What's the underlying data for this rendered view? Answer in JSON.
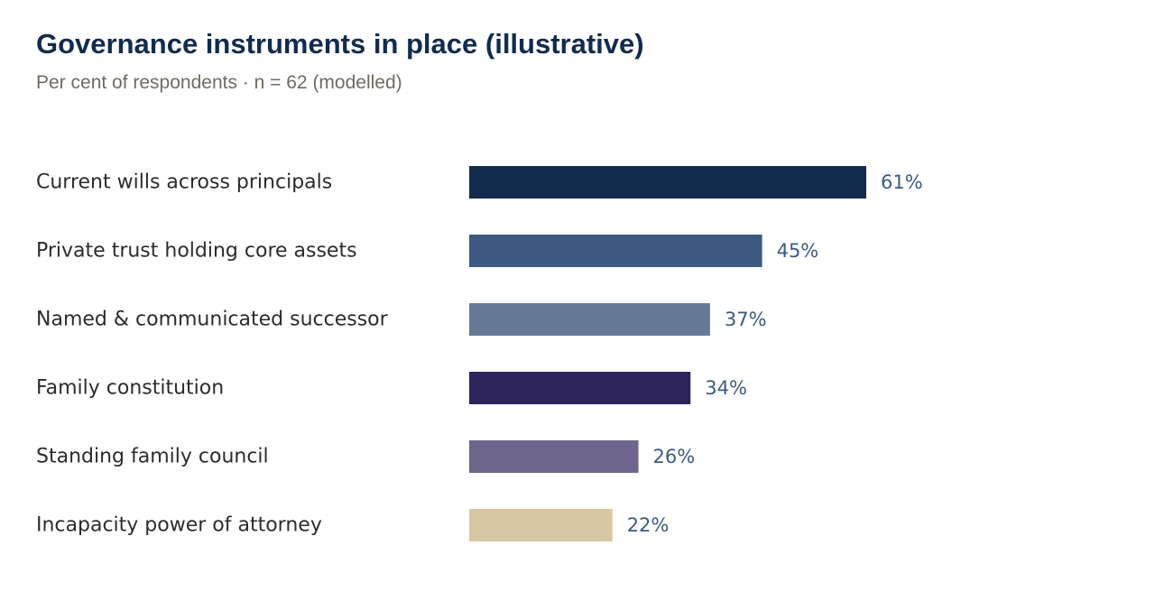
{
  "chart_data": {
    "type": "bar",
    "orientation": "horizontal",
    "title": "Governance instruments in place (illustrative)",
    "subtitle": "Per cent of respondents · n = 62 (modelled)",
    "categories": [
      "Current wills across principals",
      "Private trust holding core assets",
      "Named & communicated successor",
      "Family constitution",
      "Standing family council",
      "Incapacity power of attorney"
    ],
    "values": [
      61,
      45,
      37,
      34,
      26,
      22
    ],
    "value_labels": [
      "61%",
      "45%",
      "37%",
      "34%",
      "26%",
      "22%"
    ],
    "colors": [
      "#132b4d",
      "#3d5a80",
      "#667a98",
      "#2e245c",
      "#6e668c",
      "#d8c7a3"
    ],
    "value_label_color": "#3d5a80",
    "unit": "%",
    "xlim": [
      0,
      100
    ],
    "grid": false,
    "legend": "none"
  }
}
